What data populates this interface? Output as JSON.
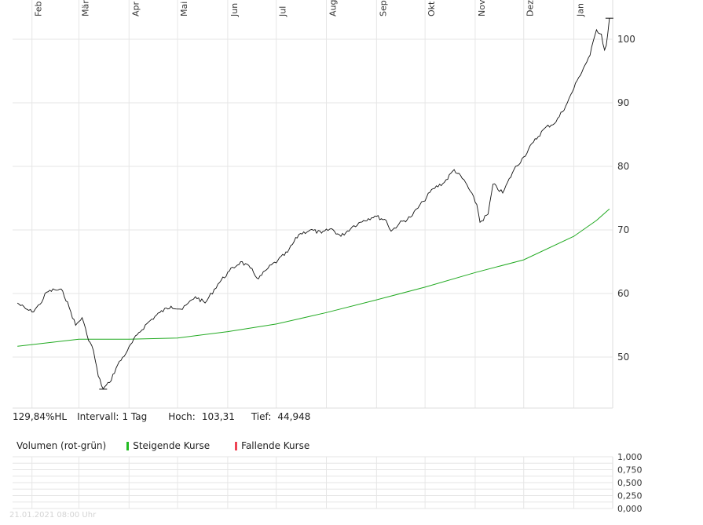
{
  "stats": {
    "hl_value": "129,84%HL",
    "interval_label": "Intervall:",
    "interval_value": "1 Tag",
    "high_label": "Hoch:",
    "high_value": "103,31",
    "low_label": "Tief:",
    "low_value": "44,948"
  },
  "volume": {
    "title": "Volumen (rot-grün)",
    "legend_up": "Steigende Kurse",
    "legend_down": "Fallende Kurse"
  },
  "footer": {
    "timestamp": "21.01.2021 08:00 Uhr"
  },
  "colors": {
    "price_line": "#111111",
    "moving_average": "#22aa22",
    "legend_up": "#22bb22",
    "legend_down": "#ee4455",
    "grid": "#e6e6e6"
  },
  "chart_data": [
    {
      "type": "line",
      "x_tick_labels": [
        "Feb",
        "Mär",
        "Apr",
        "Mai",
        "Jun",
        "Jul",
        "Aug",
        "Sep",
        "Okt",
        "Nov",
        "Dez",
        "Jan"
      ],
      "y_ticks": [
        50,
        60,
        70,
        80,
        90,
        100
      ],
      "ylim": [
        41,
        104
      ],
      "grid": true,
      "series": [
        {
          "type": "price",
          "points": [
            [
              "2020-01-23",
              58.5
            ],
            [
              "2020-01-28",
              57.6
            ],
            [
              "2020-02-01",
              57.1
            ],
            [
              "2020-02-06",
              58.3
            ],
            [
              "2020-02-10",
              60.2
            ],
            [
              "2020-02-15",
              60.6
            ],
            [
              "2020-02-20",
              60.4
            ],
            [
              "2020-02-24",
              57.8
            ],
            [
              "2020-02-28",
              55.0
            ],
            [
              "2020-03-03",
              56.2
            ],
            [
              "2020-03-06",
              53.5
            ],
            [
              "2020-03-10",
              51.0
            ],
            [
              "2020-03-13",
              47.0
            ],
            [
              "2020-03-16",
              45.0
            ],
            [
              "2020-03-20",
              46.0
            ],
            [
              "2020-03-25",
              48.8
            ],
            [
              "2020-03-31",
              51.0
            ],
            [
              "2020-04-06",
              53.5
            ],
            [
              "2020-04-13",
              55.5
            ],
            [
              "2020-04-20",
              57.0
            ],
            [
              "2020-04-27",
              58.0
            ],
            [
              "2020-05-04",
              57.5
            ],
            [
              "2020-05-12",
              59.5
            ],
            [
              "2020-05-18",
              58.5
            ],
            [
              "2020-05-26",
              61.5
            ],
            [
              "2020-06-02",
              63.5
            ],
            [
              "2020-06-09",
              65.0
            ],
            [
              "2020-06-15",
              64.0
            ],
            [
              "2020-06-20",
              62.3
            ],
            [
              "2020-06-26",
              64.0
            ],
            [
              "2020-07-02",
              65.2
            ],
            [
              "2020-07-08",
              66.5
            ],
            [
              "2020-07-15",
              69.3
            ],
            [
              "2020-07-22",
              70.0
            ],
            [
              "2020-07-29",
              69.5
            ],
            [
              "2020-08-04",
              70.2
            ],
            [
              "2020-08-10",
              69.0
            ],
            [
              "2020-08-17",
              70.5
            ],
            [
              "2020-08-24",
              71.5
            ],
            [
              "2020-08-31",
              72.2
            ],
            [
              "2020-09-07",
              71.5
            ],
            [
              "2020-09-10",
              69.8
            ],
            [
              "2020-09-15",
              71.0
            ],
            [
              "2020-09-22",
              72.0
            ],
            [
              "2020-09-30",
              74.5
            ],
            [
              "2020-10-06",
              76.5
            ],
            [
              "2020-10-13",
              77.5
            ],
            [
              "2020-10-19",
              79.5
            ],
            [
              "2020-10-26",
              77.5
            ],
            [
              "2020-11-02",
              74.0
            ],
            [
              "2020-11-04",
              71.2
            ],
            [
              "2020-11-09",
              72.5
            ],
            [
              "2020-11-12",
              77.2
            ],
            [
              "2020-11-18",
              75.8
            ],
            [
              "2020-11-25",
              79.5
            ],
            [
              "2020-12-01",
              81.5
            ],
            [
              "2020-12-07",
              83.8
            ],
            [
              "2020-12-14",
              86.0
            ],
            [
              "2020-12-21",
              87.0
            ],
            [
              "2020-12-28",
              90.0
            ],
            [
              "2021-01-04",
              94.0
            ],
            [
              "2021-01-11",
              97.5
            ],
            [
              "2021-01-15",
              101.5
            ],
            [
              "2021-01-18",
              100.8
            ],
            [
              "2021-01-20",
              98.3
            ],
            [
              "2021-01-21",
              99.0
            ],
            [
              "2021-01-23",
              103.3
            ]
          ]
        },
        {
          "type": "moving_average",
          "points": [
            [
              "2020-01-23",
              51.7
            ],
            [
              "2020-03-01",
              52.8
            ],
            [
              "2020-04-01",
              52.8
            ],
            [
              "2020-05-01",
              53.0
            ],
            [
              "2020-06-01",
              54.0
            ],
            [
              "2020-07-01",
              55.2
            ],
            [
              "2020-08-01",
              57.0
            ],
            [
              "2020-09-01",
              59.0
            ],
            [
              "2020-10-01",
              61.0
            ],
            [
              "2020-11-01",
              63.3
            ],
            [
              "2020-12-01",
              65.3
            ],
            [
              "2021-01-01",
              69.0
            ],
            [
              "2021-01-15",
              71.5
            ],
            [
              "2021-01-23",
              73.3
            ]
          ]
        }
      ],
      "annotations": [
        {
          "type": "low_marker",
          "x": "2020-03-16",
          "y": 44.948
        },
        {
          "type": "high_marker",
          "x": "2021-01-23",
          "y": 103.31
        }
      ]
    },
    {
      "type": "bar",
      "y_tick_labels": [
        "1,000",
        "0,750",
        "0,500",
        "0,250",
        "0,000"
      ],
      "ylim": [
        0,
        1
      ],
      "grid": true
    }
  ]
}
